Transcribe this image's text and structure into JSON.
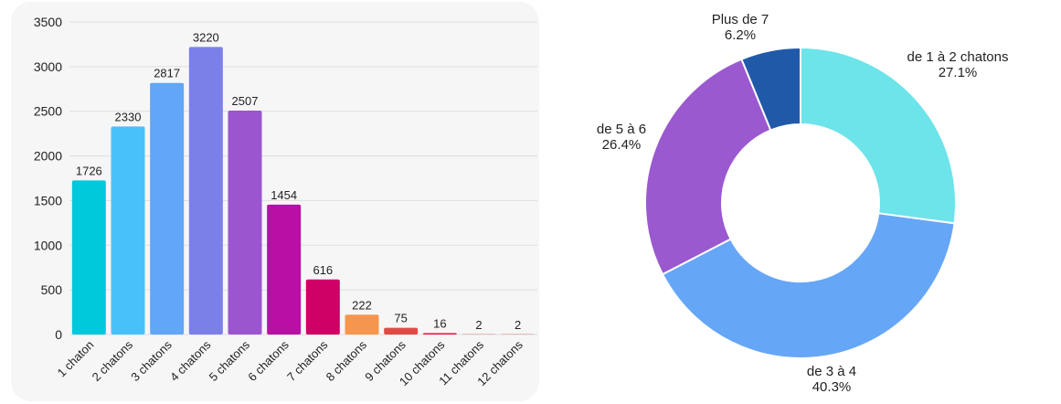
{
  "chart_data": [
    {
      "type": "bar",
      "title": "",
      "xlabel": "",
      "ylabel": "",
      "ylim": [
        0,
        3500
      ],
      "yticks": [
        0,
        500,
        1000,
        1500,
        2000,
        2500,
        3000,
        3500
      ],
      "grid": true,
      "categories": [
        "1 chaton",
        "2 chatons",
        "3 chatons",
        "4 chatons",
        "5 chatons",
        "6 chatons",
        "7 chatons",
        "8 chatons",
        "9 chatons",
        "10 chatons",
        "11 chatons",
        "12 chatons"
      ],
      "values": [
        1726,
        2330,
        2817,
        3220,
        2507,
        1454,
        616,
        222,
        75,
        16,
        2,
        2
      ],
      "colors": [
        "#00c9db",
        "#48c1fb",
        "#61a6f7",
        "#7b80e8",
        "#9a55cf",
        "#b80fa5",
        "#cf0066",
        "#f6964e",
        "#de4b45",
        "#e3234b",
        "#c62b3a",
        "#c62b3a"
      ]
    },
    {
      "type": "pie",
      "donut": true,
      "slices": [
        {
          "label": "de 1 à 2 chatons",
          "value": 27.1,
          "display": "27.1%",
          "color": "#6ce4e9"
        },
        {
          "label": "de 3 à 4",
          "value": 40.3,
          "display": "40.3%",
          "color": "#65a6f7"
        },
        {
          "label": "de 5 à 6",
          "value": 26.4,
          "display": "26.4%",
          "color": "#9a59cf"
        },
        {
          "label": "Plus de 7",
          "value": 6.2,
          "display": "6.2%",
          "color": "#2159a9"
        }
      ]
    }
  ]
}
